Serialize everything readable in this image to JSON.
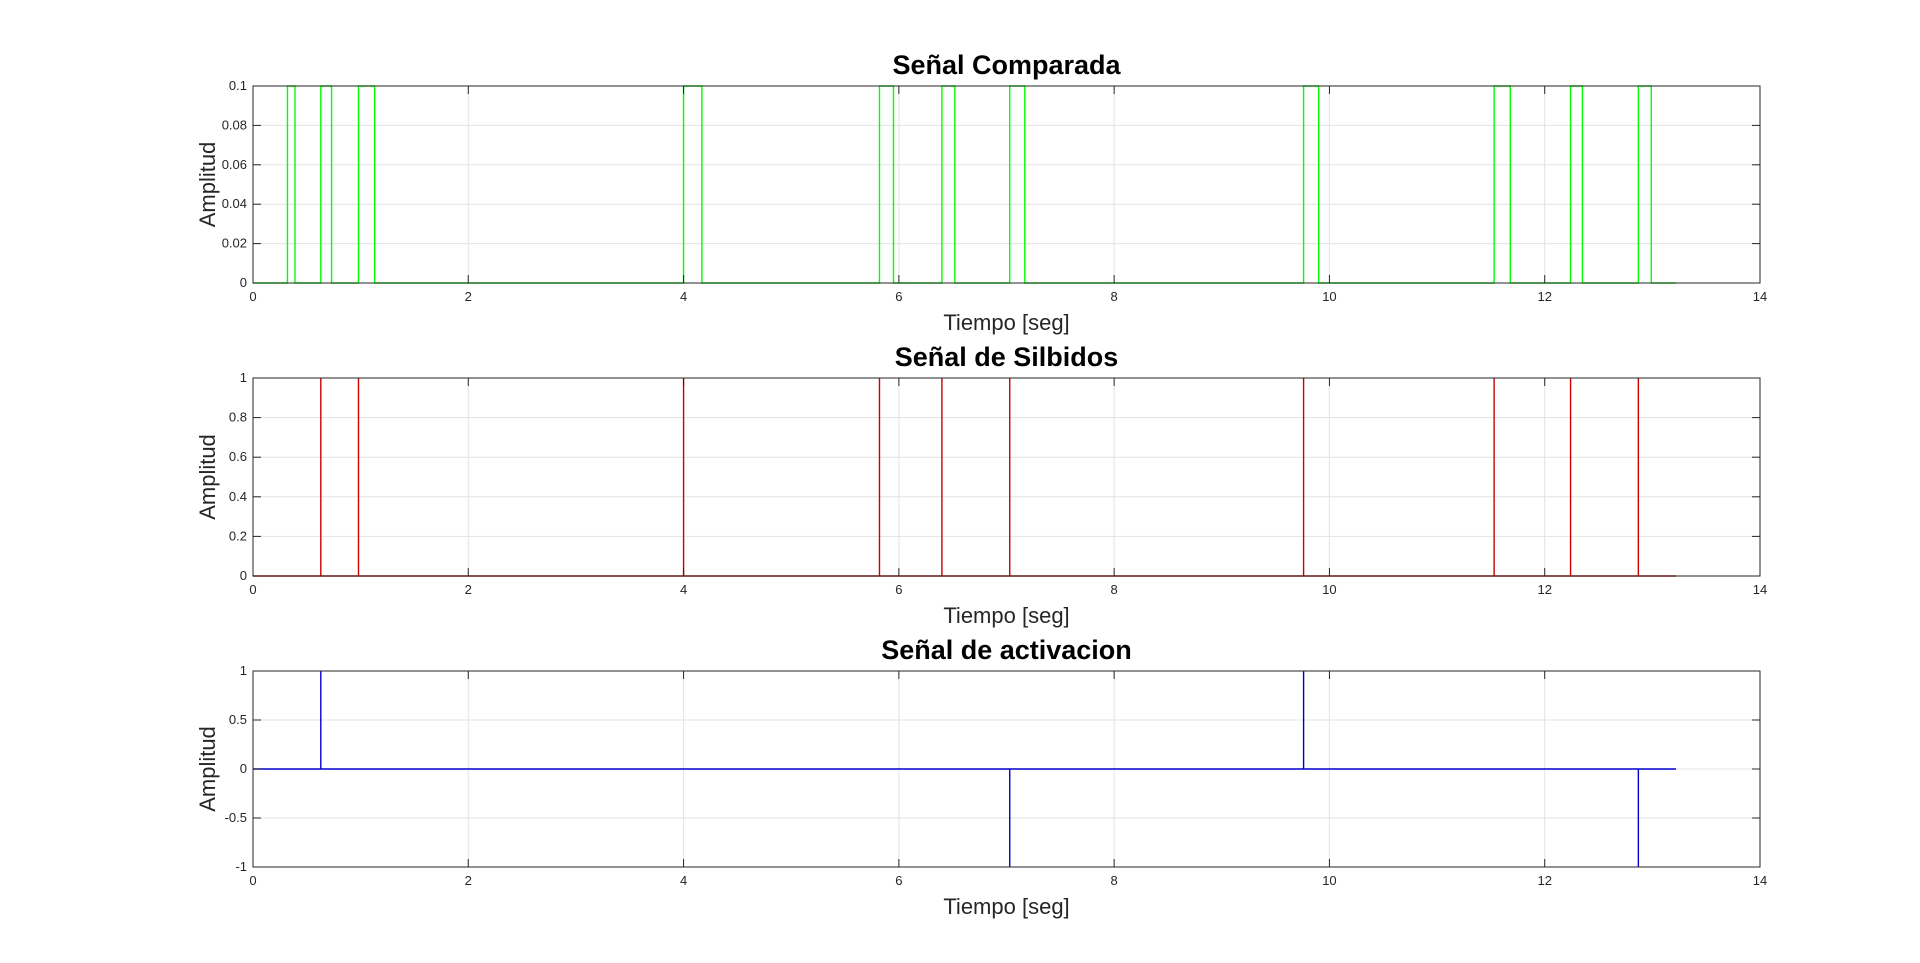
{
  "chart_data": [
    {
      "type": "line",
      "title": "Señal Comparada",
      "xlabel": "Tiempo [seg]",
      "ylabel": "Amplitud",
      "xlim": [
        0,
        14
      ],
      "ylim": [
        0,
        0.1
      ],
      "xticks": [
        "0",
        "2",
        "4",
        "6",
        "8",
        "10",
        "12",
        "14"
      ],
      "yticks": [
        "0",
        "0.02",
        "0.04",
        "0.06",
        "0.08",
        "0.1"
      ],
      "grid": true,
      "color": "#00ff00",
      "line_end": 13.22,
      "pulses": [
        [
          0.32,
          0.39
        ],
        [
          0.63,
          0.73
        ],
        [
          0.98,
          1.13
        ],
        [
          4.0,
          4.17
        ],
        [
          5.82,
          5.95
        ],
        [
          6.4,
          6.52
        ],
        [
          7.03,
          7.17
        ],
        [
          9.76,
          9.9
        ],
        [
          11.53,
          11.68
        ],
        [
          12.24,
          12.35
        ],
        [
          12.87,
          12.99
        ]
      ],
      "pulse_height": 0.1
    },
    {
      "type": "line",
      "title": "Señal de Silbidos",
      "xlabel": "Tiempo [seg]",
      "ylabel": "Amplitud",
      "xlim": [
        0,
        14
      ],
      "ylim": [
        0,
        1
      ],
      "xticks": [
        "0",
        "2",
        "4",
        "6",
        "8",
        "10",
        "12",
        "14"
      ],
      "yticks": [
        "0",
        "0.2",
        "0.4",
        "0.6",
        "0.8",
        "1"
      ],
      "grid": true,
      "color": "#cc0000",
      "line_end": 13.22,
      "spikes": [
        0.63,
        0.98,
        4.0,
        5.82,
        6.4,
        7.03,
        9.76,
        11.53,
        12.24,
        12.87
      ],
      "spike_values": [
        1,
        1,
        1,
        1,
        1,
        1,
        1,
        1,
        1,
        1
      ]
    },
    {
      "type": "line",
      "title": "Señal de activacion",
      "xlabel": "Tiempo [seg]",
      "ylabel": "Amplitud",
      "xlim": [
        0,
        14
      ],
      "ylim": [
        -1,
        1
      ],
      "xticks": [
        "0",
        "2",
        "4",
        "6",
        "8",
        "10",
        "12",
        "14"
      ],
      "yticks": [
        "-1",
        "-0.5",
        "0",
        "0.5",
        "1"
      ],
      "grid": true,
      "color": "#0000cc",
      "line_end": 13.22,
      "spikes": [
        0.63,
        7.03,
        9.76,
        12.87
      ],
      "spike_values": [
        1,
        -1,
        1,
        -1
      ]
    }
  ]
}
